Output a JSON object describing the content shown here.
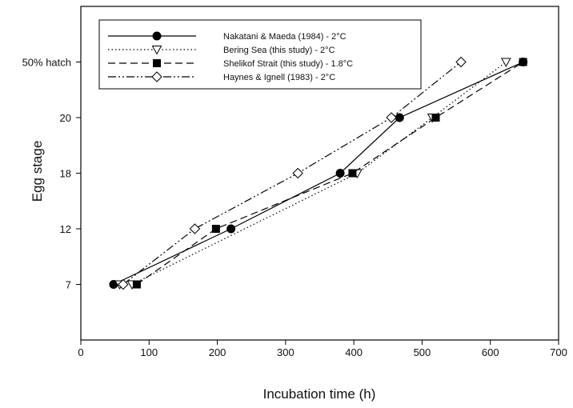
{
  "chart_data": {
    "type": "line",
    "title": "",
    "xlabel": "Incubation time (h)",
    "ylabel": "Egg stage",
    "xlim": [
      0,
      700
    ],
    "ylim": [
      0,
      6
    ],
    "x_ticks": [
      0,
      100,
      200,
      300,
      400,
      500,
      600,
      700
    ],
    "y_ticks": [
      {
        "value": 1,
        "label": "7"
      },
      {
        "value": 2,
        "label": "12"
      },
      {
        "value": 3,
        "label": "18"
      },
      {
        "value": 4,
        "label": "20"
      },
      {
        "value": 5,
        "label": "50% hatch"
      }
    ],
    "grid": false,
    "legend_position": "top-left (inside plot)",
    "series": [
      {
        "name": "Nakatani & Maeda (1984) - 2°C",
        "line_style": "solid",
        "marker": "filled-circle",
        "x": [
          48,
          220,
          380,
          467,
          648
        ],
        "y": [
          1,
          2,
          3,
          4,
          5
        ]
      },
      {
        "name": "Bering Sea (this study) - 2°C",
        "line_style": "dotted",
        "marker": "open-triangle-down",
        "x": [
          57,
          75,
          405,
          515,
          623
        ],
        "y": [
          1,
          1,
          3,
          4,
          5
        ]
      },
      {
        "name": "Shelikof Strait (this study) - 1.8°C",
        "line_style": "dashed",
        "marker": "filled-square",
        "x": [
          82,
          198,
          398,
          520,
          648
        ],
        "y": [
          1,
          2,
          3,
          4,
          5
        ]
      },
      {
        "name": "Haynes & Ignell (1983) - 2°C",
        "line_style": "dash-dot-dot",
        "marker": "open-diamond",
        "x": [
          62,
          167,
          318,
          455,
          557
        ],
        "y": [
          1,
          2,
          3,
          4,
          5
        ]
      }
    ]
  }
}
